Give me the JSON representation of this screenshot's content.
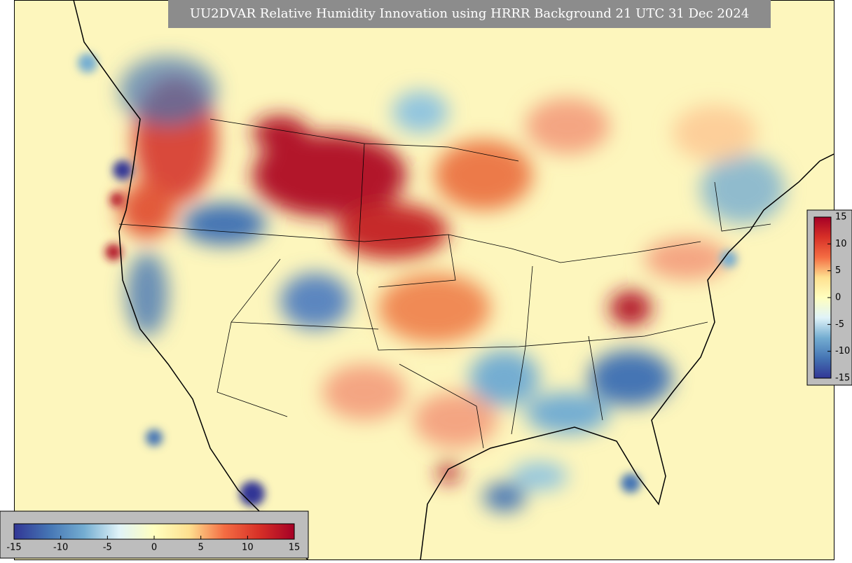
{
  "title": "UU2DVAR Relative Humidity Innovation using HRRR Background 21 UTC 31 Dec 2024",
  "colorbar_right": {
    "range": [
      -15,
      15
    ],
    "ticks": [
      15,
      10,
      5,
      0,
      -5,
      -10,
      -15
    ]
  },
  "colorbar_bottom": {
    "range": [
      -15,
      15
    ],
    "ticks": [
      -15,
      -10,
      -5,
      0,
      5,
      10,
      15
    ]
  },
  "colors": [
    "#313695",
    "#4575b4",
    "#74add1",
    "#e0f3f8",
    "#ffffbf",
    "#fee090",
    "#f46d43",
    "#d73027",
    "#a50026"
  ]
}
